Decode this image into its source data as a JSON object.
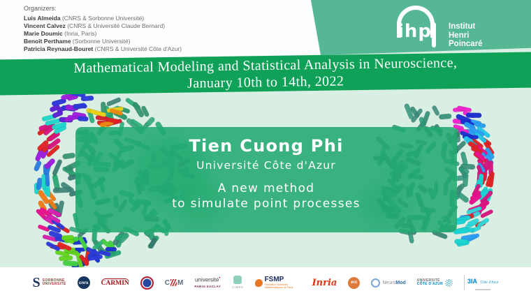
{
  "slide": {
    "background": "#D9EFE4",
    "footer_background": "#FFFFFF"
  },
  "organizers": {
    "heading": "Organizers:",
    "people": [
      {
        "name": "Luis Almeida",
        "affiliation": "(CNRS & Sorbonne Université)"
      },
      {
        "name": "Vincent Calvez",
        "affiliation": "(CNRS & Université Claude Bernard)"
      },
      {
        "name": "Marie Doumic",
        "affiliation": "(Inria, Paris)"
      },
      {
        "name": "Benoît Perthame",
        "affiliation": "(Sorbonne Université)"
      },
      {
        "name": "Patricia Reynaud-Bouret",
        "affiliation": "(CNRS & Université Côte d'Azur)"
      }
    ]
  },
  "ihp": {
    "acronym": "ihp",
    "line1": "Institut",
    "line2": "Henri",
    "line3": "Poincaré",
    "block_color": "#56B795"
  },
  "banner": {
    "line1": "Mathematical Modeling and Statistical Analysis in Neuroscience,",
    "line2": "January 10th to 14th, 2022",
    "color": "#0FA158"
  },
  "speaker_card": {
    "name": "Tien Cuong Phi",
    "affiliation": "Université Côte d'Azur",
    "title_line1": "A new method",
    "title_line2": "to simulate point processes",
    "color": "#22AA72"
  },
  "sponsors": {
    "sorbonne": {
      "glyph": "S",
      "line1": "SORBONNE",
      "line2": "UNIVERSITÉ"
    },
    "cnrs": {
      "label": "cnrs"
    },
    "carmin": {
      "label": "CARMIN"
    },
    "cirm": {
      "left": "C",
      "right": "M"
    },
    "paris_saclay": {
      "line1": "université",
      "line2": "PARIS-SACLAY"
    },
    "cimpa": {
      "label": "CIMPA"
    },
    "fsmp": {
      "label": "FSMP",
      "sub": "Fondation Sciences Mathématiques de Paris"
    },
    "inria": {
      "label": "Inria"
    },
    "erc": {
      "label": "erc"
    },
    "neuromod": {
      "prefix": "Neuro",
      "suffix": "Mod"
    },
    "uca": {
      "line1": "UNIVERSITÉ",
      "line2": "CÔTE D'AZUR"
    },
    "tia": {
      "label": "3IA",
      "sub": "Côte d'Azur"
    }
  }
}
